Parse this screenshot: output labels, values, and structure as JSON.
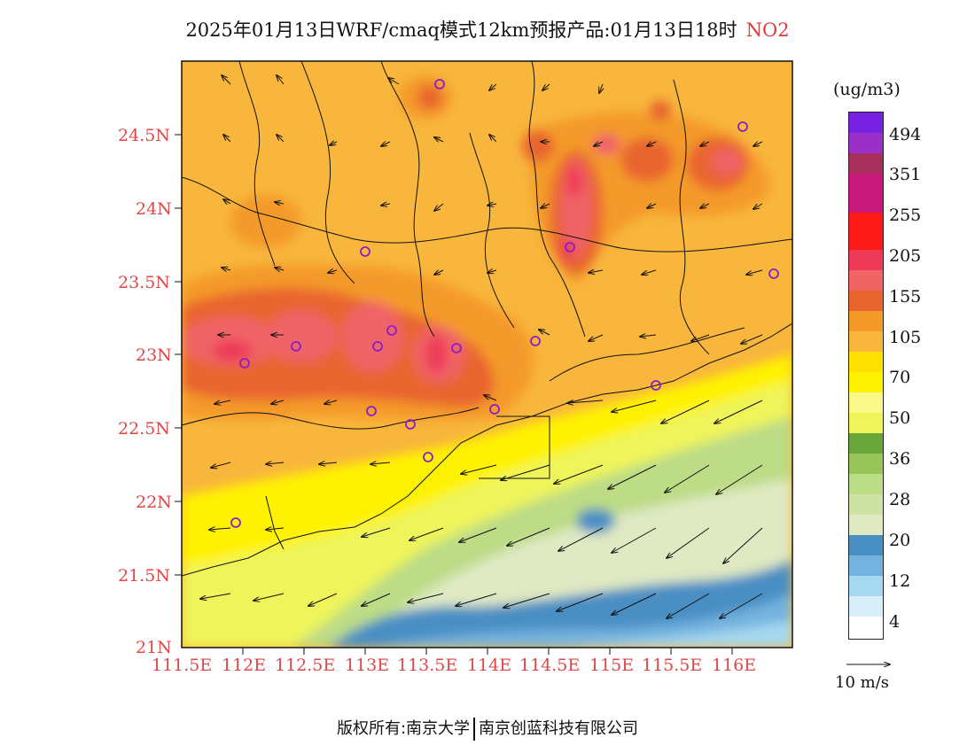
{
  "title": {
    "text": "2025年01月13日WRF/cmaq模式12km预报产品:01月13日18时",
    "species": "NO2"
  },
  "axes": {
    "lat_ticks": [
      "24.5N",
      "24N",
      "23.5N",
      "23N",
      "22.5N",
      "22N",
      "21.5N",
      "21N"
    ],
    "lon_ticks": [
      "111.5E",
      "112E",
      "112.5E",
      "113E",
      "113.5E",
      "114E",
      "114.5E",
      "115E",
      "115.5E",
      "116E"
    ]
  },
  "legend": {
    "unit": "(ug/m3)",
    "labels": [
      "494",
      "351",
      "255",
      "205",
      "155",
      "105",
      "70",
      "50",
      "36",
      "28",
      "20",
      "12",
      "4"
    ],
    "colors": [
      "#ffffff",
      "#d8eef8",
      "#a6d8f0",
      "#74b3df",
      "#4a8fc4",
      "#dfe9c2",
      "#cfe2a6",
      "#bcdc86",
      "#98c65a",
      "#6aa53a",
      "#eef45a",
      "#fbf88a",
      "#fff200",
      "#ffe000",
      "#f8b63c",
      "#f49a2a",
      "#e8652e",
      "#f06466",
      "#ee3a58",
      "#ff1a1a",
      "#c8197a",
      "#a6305c",
      "#9a30c8",
      "#7722e0"
    ]
  },
  "wind_reference": {
    "label": "10 m/s"
  },
  "copyright": {
    "prefix": "版权所有:",
    "org1": "南京大学",
    "org2": "南京创蓝科技有限公司"
  }
}
